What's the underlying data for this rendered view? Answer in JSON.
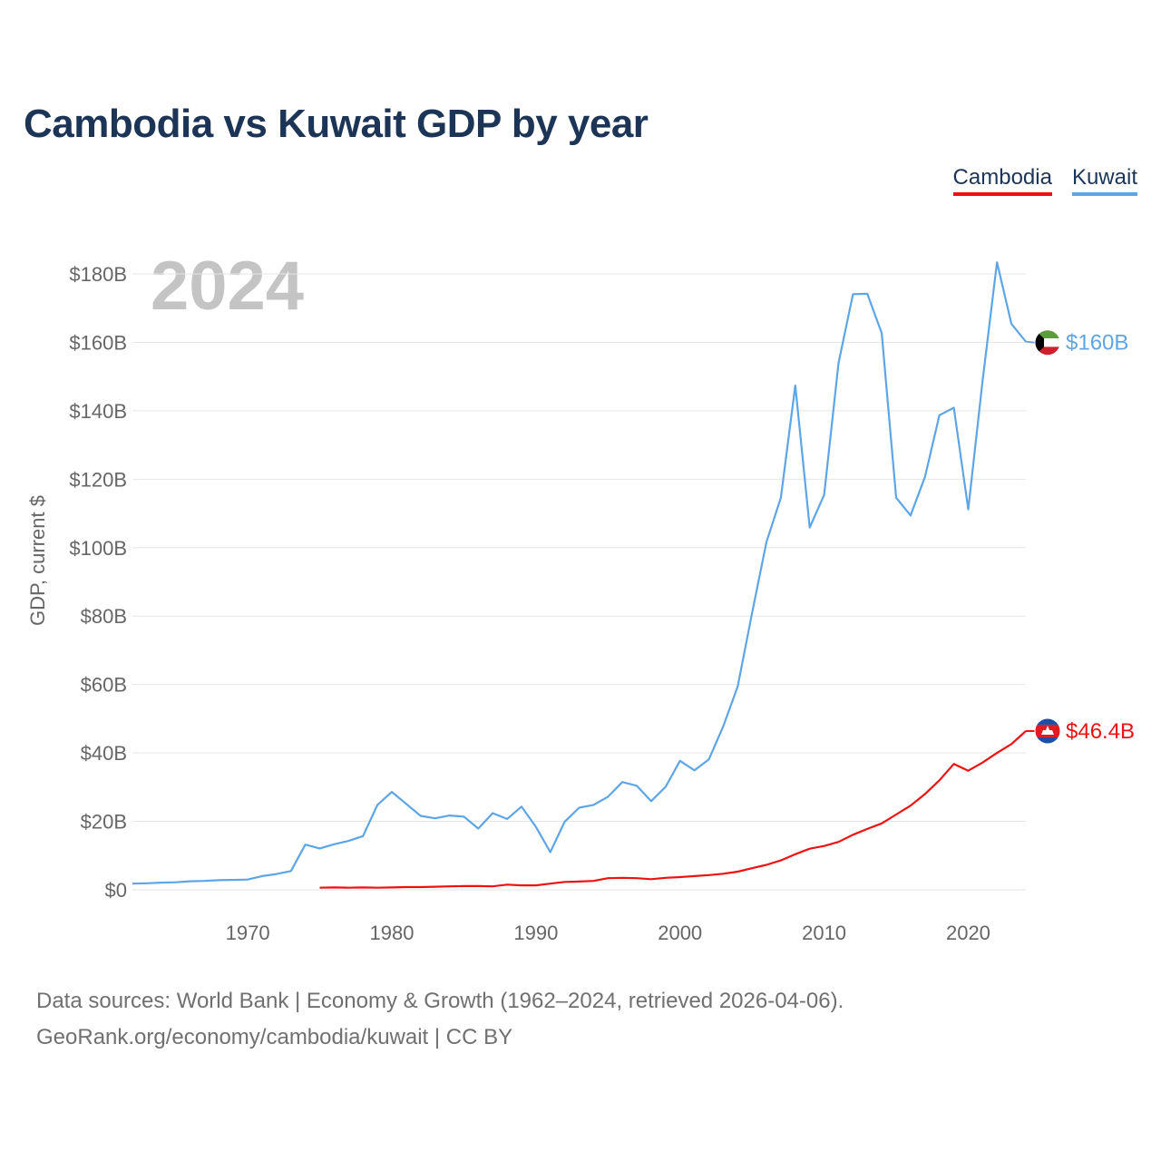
{
  "title": "Cambodia vs Kuwait GDP by year",
  "year_watermark": "2024",
  "legend": {
    "cambodia": "Cambodia",
    "kuwait": "Kuwait"
  },
  "source": {
    "line1": "Data sources: World Bank | Economy & Growth (1962–2024, retrieved 2026-04-06).",
    "line2": "GeoRank.org/economy/cambodia/kuwait | CC BY"
  },
  "chart_data": {
    "type": "line",
    "title": "Cambodia vs Kuwait GDP by year",
    "xlabel": "",
    "ylabel": "GDP, current $",
    "xlim": [
      1962,
      2024
    ],
    "ylim": [
      0,
      180
    ],
    "y_unit": "billions USD",
    "y_ticks": [
      {
        "value": 0,
        "label": "$0"
      },
      {
        "value": 20,
        "label": "$20B"
      },
      {
        "value": 40,
        "label": "$40B"
      },
      {
        "value": 60,
        "label": "$60B"
      },
      {
        "value": 80,
        "label": "$80B"
      },
      {
        "value": 100,
        "label": "$100B"
      },
      {
        "value": 120,
        "label": "$120B"
      },
      {
        "value": 140,
        "label": "$140B"
      },
      {
        "value": 160,
        "label": "$160B"
      },
      {
        "value": 180,
        "label": "$180B"
      }
    ],
    "x_ticks": [
      {
        "value": 1970,
        "label": "1970"
      },
      {
        "value": 1980,
        "label": "1980"
      },
      {
        "value": 1990,
        "label": "1990"
      },
      {
        "value": 2000,
        "label": "2000"
      },
      {
        "value": 2010,
        "label": "2010"
      },
      {
        "value": 2020,
        "label": "2020"
      }
    ],
    "grid": true,
    "legend_position": "top-right",
    "series": [
      {
        "name": "Kuwait",
        "color": "#5ea5e6",
        "end_label": "$160B",
        "flag": "kuwait-flag",
        "x": [
          1962,
          1963,
          1964,
          1965,
          1966,
          1967,
          1968,
          1969,
          1970,
          1971,
          1972,
          1973,
          1974,
          1975,
          1976,
          1977,
          1978,
          1979,
          1980,
          1981,
          1982,
          1983,
          1984,
          1985,
          1986,
          1987,
          1988,
          1989,
          1990,
          1991,
          1992,
          1993,
          1994,
          1995,
          1996,
          1997,
          1998,
          1999,
          2000,
          2001,
          2002,
          2003,
          2004,
          2005,
          2006,
          2007,
          2008,
          2009,
          2010,
          2011,
          2012,
          2013,
          2014,
          2015,
          2016,
          2017,
          2018,
          2019,
          2020,
          2021,
          2022,
          2023,
          2024
        ],
        "values": [
          1.8,
          1.9,
          2.1,
          2.2,
          2.5,
          2.6,
          2.8,
          2.9,
          3.0,
          4.0,
          4.6,
          5.5,
          13.2,
          12.1,
          13.3,
          14.3,
          15.7,
          24.8,
          28.6,
          25.1,
          21.6,
          20.9,
          21.7,
          21.4,
          17.9,
          22.4,
          20.7,
          24.3,
          18.4,
          11.0,
          19.9,
          24.0,
          24.8,
          27.2,
          31.5,
          30.4,
          25.9,
          30.1,
          37.7,
          34.9,
          38.1,
          47.8,
          59.4,
          80.8,
          101.6,
          114.6,
          147.4,
          105.9,
          115.4,
          154.0,
          174.1,
          174.2,
          162.7,
          114.6,
          109.4,
          120.7,
          138.7,
          140.9,
          111.2,
          148.8,
          183.4,
          165.4,
          160.2
        ]
      },
      {
        "name": "Cambodia",
        "color": "#ee1111",
        "end_label": "$46.4B",
        "flag": "cambodia-flag",
        "x": [
          1975,
          1976,
          1977,
          1978,
          1979,
          1980,
          1981,
          1982,
          1983,
          1984,
          1985,
          1986,
          1987,
          1988,
          1989,
          1990,
          1991,
          1992,
          1993,
          1994,
          1995,
          1996,
          1997,
          1998,
          1999,
          2000,
          2001,
          2002,
          2003,
          2004,
          2005,
          2006,
          2007,
          2008,
          2009,
          2010,
          2011,
          2012,
          2013,
          2014,
          2015,
          2016,
          2017,
          2018,
          2019,
          2020,
          2021,
          2022,
          2023,
          2024
        ],
        "values": [
          0.6,
          0.7,
          0.6,
          0.7,
          0.6,
          0.7,
          0.8,
          0.8,
          0.9,
          1.0,
          1.1,
          1.1,
          1.0,
          1.5,
          1.3,
          1.3,
          1.8,
          2.3,
          2.4,
          2.6,
          3.4,
          3.5,
          3.4,
          3.1,
          3.5,
          3.7,
          4.0,
          4.3,
          4.7,
          5.3,
          6.3,
          7.3,
          8.6,
          10.4,
          12.0,
          12.8,
          14.0,
          16.1,
          17.8,
          19.4,
          22.0,
          24.6,
          28.0,
          32.0,
          36.8,
          34.8,
          37.2,
          40.0,
          42.6,
          46.4
        ]
      }
    ]
  }
}
